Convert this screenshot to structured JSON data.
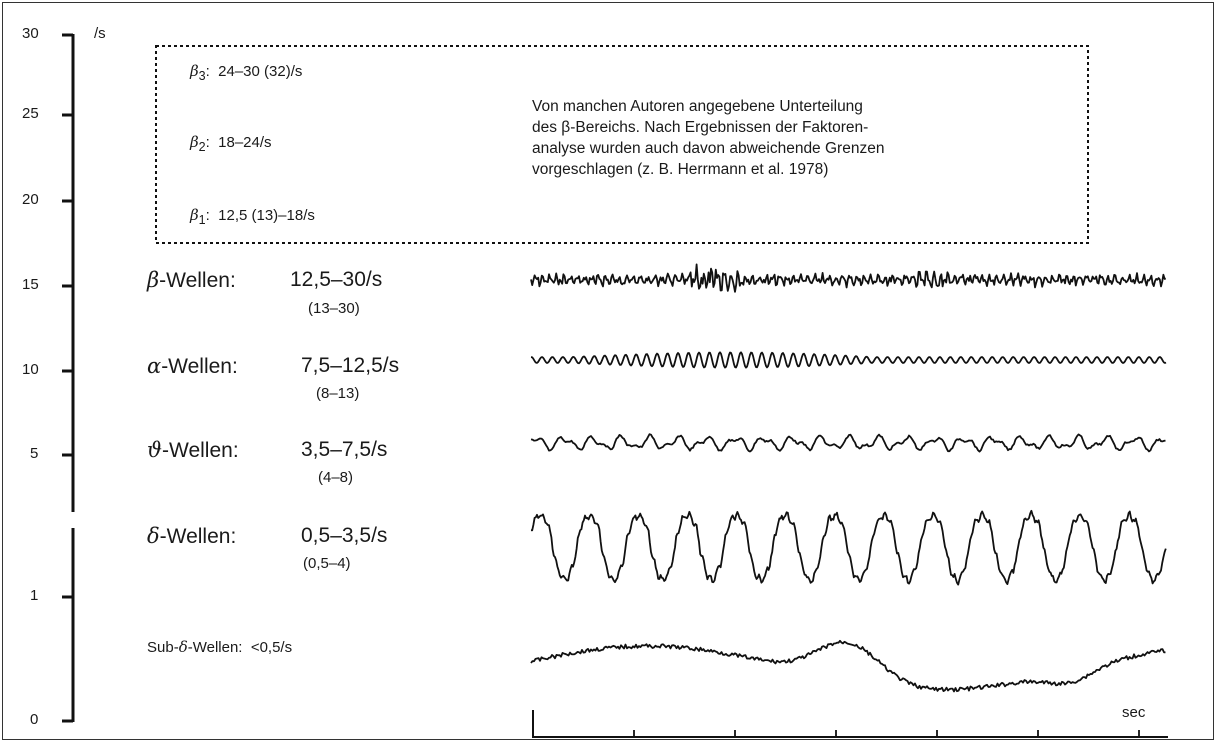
{
  "scale": {
    "unit": "/s",
    "upper_ticks": [
      "30",
      "25",
      "20",
      "15",
      "10",
      "5"
    ],
    "lower_ticks": [
      "1",
      "0"
    ]
  },
  "beta_box": {
    "sub_bands": [
      {
        "symbol": "β",
        "sub": "3",
        "range": "24–30 (32)/s"
      },
      {
        "symbol": "β",
        "sub": "2",
        "range": "18–24/s"
      },
      {
        "symbol": "β",
        "sub": "1",
        "range": "12,5 (13)–18/s"
      }
    ],
    "note_lines": [
      "Von manchen Autoren angegebene Unterteilung",
      "des β-Bereichs. Nach Ergebnissen der Faktoren-",
      "analyse wurden auch davon abweichende Grenzen",
      "vorgeschlagen (z. B. Herrmann et al. 1978)"
    ]
  },
  "waves": [
    {
      "symbol": "β",
      "name": "-Wellen:",
      "range": "12,5–30/s",
      "alt_range": "(13–30)"
    },
    {
      "symbol": "α",
      "name": "-Wellen:",
      "range": "7,5–12,5/s",
      "alt_range": "(8–13)"
    },
    {
      "symbol": "ϑ",
      "name": "-Wellen:",
      "range": "3,5–7,5/s",
      "alt_range": "(4–8)"
    },
    {
      "symbol": "δ",
      "name": "-Wellen:",
      "range": "0,5–3,5/s",
      "alt_range": "(0,5–4)"
    }
  ],
  "sub_delta": {
    "prefix": "Sub-",
    "symbol": "δ",
    "suffix": "-Wellen:",
    "range": "<0,5/s"
  },
  "time_axis": {
    "label": "sec"
  }
}
